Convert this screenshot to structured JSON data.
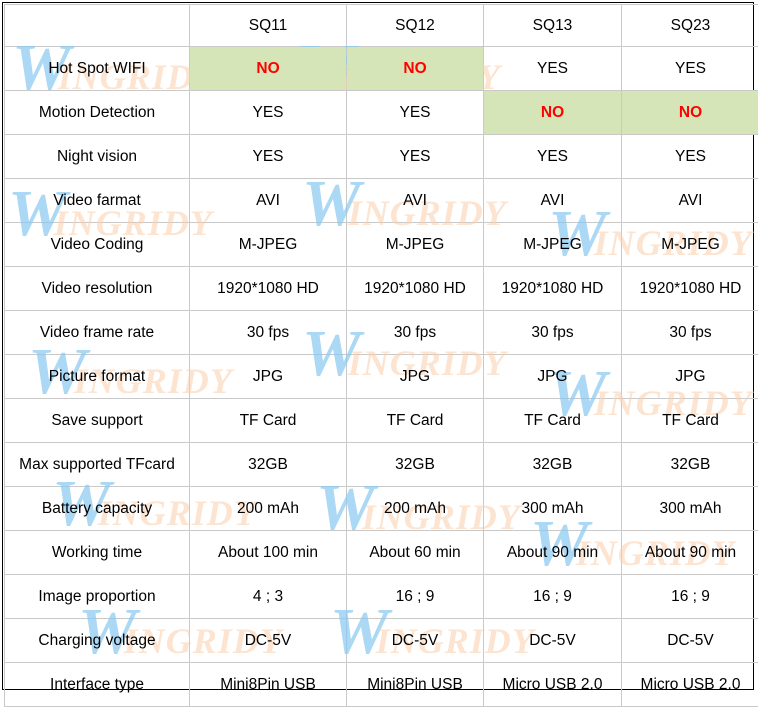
{
  "watermark": {
    "first": "W",
    "rest": "INGRIDY"
  },
  "table": {
    "headers": [
      "",
      "SQ11",
      "SQ12",
      "SQ13",
      "SQ23"
    ],
    "rows": [
      {
        "label": "Hot Spot WIFI",
        "values": [
          "NO",
          "NO",
          "YES",
          "YES"
        ]
      },
      {
        "label": "Motion Detection",
        "values": [
          "YES",
          "YES",
          "NO",
          "NO"
        ]
      },
      {
        "label": "Night vision",
        "values": [
          "YES",
          "YES",
          "YES",
          "YES"
        ]
      },
      {
        "label": "Video farmat",
        "values": [
          "AVI",
          "AVI",
          "AVI",
          "AVI"
        ]
      },
      {
        "label": "Video Coding",
        "values": [
          "M-JPEG",
          "M-JPEG",
          "M-JPEG",
          "M-JPEG"
        ]
      },
      {
        "label": "Video resolution",
        "values": [
          "1920*1080 HD",
          "1920*1080 HD",
          "1920*1080 HD",
          "1920*1080 HD"
        ]
      },
      {
        "label": "Video frame rate",
        "values": [
          "30 fps",
          "30 fps",
          "30 fps",
          "30 fps"
        ]
      },
      {
        "label": "Picture format",
        "values": [
          "JPG",
          "JPG",
          "JPG",
          "JPG"
        ]
      },
      {
        "label": "Save support",
        "values": [
          "TF Card",
          "TF Card",
          "TF Card",
          "TF Card"
        ]
      },
      {
        "label": "Max supported TFcard",
        "values": [
          "32GB",
          "32GB",
          "32GB",
          "32GB"
        ]
      },
      {
        "label": "Battery capacity",
        "values": [
          "200 mAh",
          "200 mAh",
          "300 mAh",
          "300 mAh"
        ]
      },
      {
        "label": "Working time",
        "values": [
          "About 100 min",
          "About 60 min",
          "About 90 min",
          "About 90 min"
        ]
      },
      {
        "label": "Image proportion",
        "values": [
          "4 ; 3",
          "16 ; 9",
          "16 ; 9",
          "16 ; 9"
        ]
      },
      {
        "label": "Charging voltage",
        "values": [
          "DC-5V",
          "DC-5V",
          "DC-5V",
          "DC-5V"
        ]
      },
      {
        "label": "Interface type",
        "values": [
          "Mini8Pin USB",
          "Mini8Pin USB",
          "Micro USB 2.0",
          "Micro USB 2.0"
        ]
      }
    ]
  }
}
